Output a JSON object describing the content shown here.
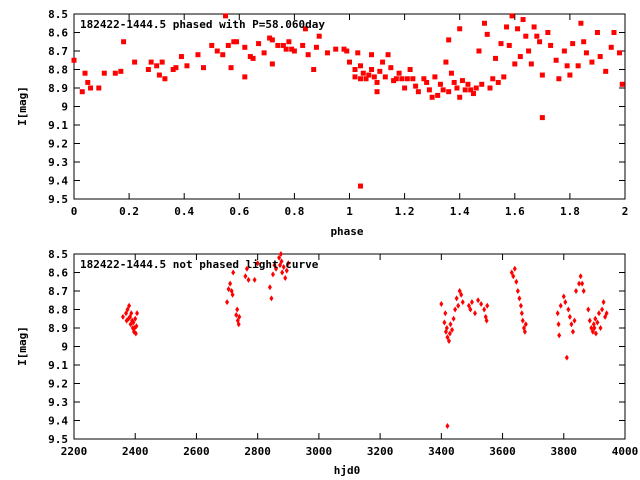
{
  "chart_data": [
    {
      "type": "scatter",
      "title": "182422-1444.5 phased with P=58.060day",
      "xlabel": "phase",
      "ylabel": "I[mag]",
      "xlim": [
        0,
        2
      ],
      "ylim": [
        9.5,
        8.5
      ],
      "y_inverted": true,
      "marker_color": "#ff0000",
      "marker": "filled-square",
      "xticks": [
        "0",
        "0.2",
        "0.4",
        "0.6",
        "0.8",
        "1",
        "1.2",
        "1.4",
        "1.6",
        "1.8",
        "2"
      ],
      "yticks": [
        "8.5",
        "8.6",
        "8.7",
        "8.8",
        "8.9",
        "9",
        "9.1",
        "9.2",
        "9.3",
        "9.4",
        "9.5"
      ],
      "points": [
        [
          0.0,
          8.75
        ],
        [
          0.03,
          8.92
        ],
        [
          0.04,
          8.82
        ],
        [
          0.05,
          8.87
        ],
        [
          0.06,
          8.9
        ],
        [
          0.09,
          8.9
        ],
        [
          0.11,
          8.82
        ],
        [
          0.15,
          8.82
        ],
        [
          0.17,
          8.81
        ],
        [
          0.18,
          8.65
        ],
        [
          0.22,
          8.76
        ],
        [
          0.27,
          8.8
        ],
        [
          0.28,
          8.76
        ],
        [
          0.3,
          8.78
        ],
        [
          0.31,
          8.83
        ],
        [
          0.32,
          8.76
        ],
        [
          0.33,
          8.85
        ],
        [
          0.36,
          8.8
        ],
        [
          0.37,
          8.79
        ],
        [
          0.39,
          8.73
        ],
        [
          0.41,
          8.78
        ],
        [
          0.45,
          8.72
        ],
        [
          0.47,
          8.79
        ],
        [
          0.5,
          8.67
        ],
        [
          0.52,
          8.7
        ],
        [
          0.54,
          8.72
        ],
        [
          0.55,
          8.51
        ],
        [
          0.56,
          8.67
        ],
        [
          0.57,
          8.79
        ],
        [
          0.58,
          8.65
        ],
        [
          0.59,
          8.65
        ],
        [
          0.62,
          8.68
        ],
        [
          0.62,
          8.84
        ],
        [
          0.64,
          8.73
        ],
        [
          0.65,
          8.74
        ],
        [
          0.67,
          8.66
        ],
        [
          0.69,
          8.71
        ],
        [
          0.71,
          8.63
        ],
        [
          0.72,
          8.64
        ],
        [
          0.72,
          8.77
        ],
        [
          0.74,
          8.67
        ],
        [
          0.76,
          8.67
        ],
        [
          0.77,
          8.69
        ],
        [
          0.78,
          8.65
        ],
        [
          0.79,
          8.69
        ],
        [
          0.8,
          8.7
        ],
        [
          0.83,
          8.67
        ],
        [
          0.84,
          8.58
        ],
        [
          0.85,
          8.72
        ],
        [
          0.87,
          8.8
        ],
        [
          0.88,
          8.68
        ],
        [
          0.89,
          8.62
        ],
        [
          0.92,
          8.71
        ],
        [
          0.95,
          8.69
        ],
        [
          0.98,
          8.69
        ],
        [
          0.99,
          8.7
        ],
        [
          1.0,
          8.76
        ],
        [
          1.02,
          8.8
        ],
        [
          1.02,
          8.84
        ],
        [
          1.03,
          8.71
        ],
        [
          1.04,
          8.78
        ],
        [
          1.04,
          8.85
        ],
        [
          1.05,
          8.82
        ],
        [
          1.06,
          8.85
        ],
        [
          1.07,
          8.83
        ],
        [
          1.08,
          8.72
        ],
        [
          1.08,
          8.8
        ],
        [
          1.09,
          8.84
        ],
        [
          1.1,
          8.87
        ],
        [
          1.1,
          8.92
        ],
        [
          1.11,
          8.81
        ],
        [
          1.12,
          8.76
        ],
        [
          1.13,
          8.84
        ],
        [
          1.14,
          8.72
        ],
        [
          1.15,
          8.79
        ],
        [
          1.16,
          8.86
        ],
        [
          1.17,
          8.85
        ],
        [
          1.18,
          8.82
        ],
        [
          1.19,
          8.85
        ],
        [
          1.2,
          8.9
        ],
        [
          1.21,
          8.85
        ],
        [
          1.22,
          8.8
        ],
        [
          1.23,
          8.85
        ],
        [
          1.24,
          8.89
        ],
        [
          1.25,
          8.92
        ],
        [
          1.27,
          8.85
        ],
        [
          1.28,
          8.87
        ],
        [
          1.29,
          8.91
        ],
        [
          1.3,
          8.95
        ],
        [
          1.31,
          8.84
        ],
        [
          1.32,
          8.94
        ],
        [
          1.33,
          8.88
        ],
        [
          1.34,
          8.91
        ],
        [
          1.35,
          8.76
        ],
        [
          1.36,
          8.64
        ],
        [
          1.36,
          8.92
        ],
        [
          1.37,
          8.82
        ],
        [
          1.38,
          8.87
        ],
        [
          1.39,
          8.9
        ],
        [
          1.4,
          8.58
        ],
        [
          1.4,
          8.95
        ],
        [
          1.41,
          8.86
        ],
        [
          1.42,
          8.91
        ],
        [
          1.43,
          8.88
        ],
        [
          1.44,
          8.91
        ],
        [
          1.45,
          8.93
        ],
        [
          1.46,
          8.9
        ],
        [
          1.47,
          8.7
        ],
        [
          1.48,
          8.88
        ],
        [
          1.49,
          8.55
        ],
        [
          1.5,
          8.61
        ],
        [
          1.51,
          8.9
        ],
        [
          1.52,
          8.85
        ],
        [
          1.53,
          8.74
        ],
        [
          1.54,
          8.87
        ],
        [
          1.55,
          8.66
        ],
        [
          1.56,
          8.84
        ],
        [
          1.57,
          8.57
        ],
        [
          1.58,
          8.67
        ],
        [
          1.59,
          8.51
        ],
        [
          1.6,
          8.77
        ],
        [
          1.61,
          8.58
        ],
        [
          1.62,
          8.73
        ],
        [
          1.63,
          8.53
        ],
        [
          1.64,
          8.62
        ],
        [
          1.65,
          8.7
        ],
        [
          1.66,
          8.77
        ],
        [
          1.67,
          8.57
        ],
        [
          1.68,
          8.62
        ],
        [
          1.69,
          8.65
        ],
        [
          1.7,
          8.83
        ],
        [
          1.7,
          9.06
        ],
        [
          1.72,
          8.6
        ],
        [
          1.73,
          8.67
        ],
        [
          1.75,
          8.75
        ],
        [
          1.76,
          8.85
        ],
        [
          1.78,
          8.7
        ],
        [
          1.79,
          8.78
        ],
        [
          1.8,
          8.83
        ],
        [
          1.81,
          8.66
        ],
        [
          1.83,
          8.78
        ],
        [
          1.84,
          8.55
        ],
        [
          1.85,
          8.65
        ],
        [
          1.86,
          8.71
        ],
        [
          1.88,
          8.76
        ],
        [
          1.9,
          8.6
        ],
        [
          1.91,
          8.73
        ],
        [
          1.93,
          8.81
        ],
        [
          1.95,
          8.68
        ],
        [
          1.96,
          8.6
        ],
        [
          1.98,
          8.71
        ],
        [
          1.99,
          8.88
        ],
        [
          1.04,
          9.43
        ]
      ]
    },
    {
      "type": "scatter",
      "title": "182422-1444.5 not phased light curve",
      "xlabel": "hjd0",
      "ylabel": "I[mag]",
      "xlim": [
        2200,
        4000
      ],
      "ylim": [
        9.5,
        8.5
      ],
      "y_inverted": true,
      "marker_color": "#ff0000",
      "marker": "filled-diamond",
      "xticks": [
        "2200",
        "2400",
        "2600",
        "2800",
        "3000",
        "3200",
        "3400",
        "3600",
        "3800",
        "4000"
      ],
      "yticks": [
        "8.5",
        "8.6",
        "8.7",
        "8.8",
        "8.9",
        "9",
        "9.1",
        "9.2",
        "9.3",
        "9.4",
        "9.5"
      ],
      "points": [
        [
          2360,
          8.84
        ],
        [
          2370,
          8.82
        ],
        [
          2372,
          8.86
        ],
        [
          2375,
          8.8
        ],
        [
          2378,
          8.85
        ],
        [
          2380,
          8.78
        ],
        [
          2383,
          8.84
        ],
        [
          2385,
          8.88
        ],
        [
          2387,
          8.82
        ],
        [
          2390,
          8.86
        ],
        [
          2392,
          8.9
        ],
        [
          2394,
          8.87
        ],
        [
          2396,
          8.92
        ],
        [
          2398,
          8.9
        ],
        [
          2400,
          8.85
        ],
        [
          2402,
          8.93
        ],
        [
          2404,
          8.89
        ],
        [
          2406,
          8.82
        ],
        [
          2700,
          8.76
        ],
        [
          2705,
          8.69
        ],
        [
          2710,
          8.66
        ],
        [
          2715,
          8.7
        ],
        [
          2718,
          8.72
        ],
        [
          2720,
          8.6
        ],
        [
          2730,
          8.83
        ],
        [
          2733,
          8.8
        ],
        [
          2735,
          8.86
        ],
        [
          2738,
          8.88
        ],
        [
          2740,
          8.84
        ],
        [
          2760,
          8.62
        ],
        [
          2765,
          8.58
        ],
        [
          2770,
          8.64
        ],
        [
          2790,
          8.64
        ],
        [
          2800,
          8.55
        ],
        [
          2840,
          8.68
        ],
        [
          2845,
          8.74
        ],
        [
          2850,
          8.61
        ],
        [
          2855,
          8.56
        ],
        [
          2860,
          8.58
        ],
        [
          2870,
          8.52
        ],
        [
          2873,
          8.56
        ],
        [
          2876,
          8.5
        ],
        [
          2878,
          8.54
        ],
        [
          2880,
          8.6
        ],
        [
          2885,
          8.57
        ],
        [
          2890,
          8.63
        ],
        [
          2895,
          8.59
        ],
        [
          2900,
          8.55
        ],
        [
          3400,
          8.77
        ],
        [
          3410,
          8.87
        ],
        [
          3413,
          8.82
        ],
        [
          3415,
          8.92
        ],
        [
          3418,
          8.9
        ],
        [
          3420,
          8.95
        ],
        [
          3425,
          8.97
        ],
        [
          3428,
          8.93
        ],
        [
          3430,
          8.88
        ],
        [
          3435,
          8.91
        ],
        [
          3440,
          8.85
        ],
        [
          3445,
          8.8
        ],
        [
          3450,
          8.74
        ],
        [
          3455,
          8.78
        ],
        [
          3460,
          8.7
        ],
        [
          3465,
          8.72
        ],
        [
          3470,
          8.76
        ],
        [
          3490,
          8.78
        ],
        [
          3495,
          8.8
        ],
        [
          3500,
          8.76
        ],
        [
          3510,
          8.82
        ],
        [
          3520,
          8.75
        ],
        [
          3530,
          8.77
        ],
        [
          3540,
          8.8
        ],
        [
          3545,
          8.84
        ],
        [
          3548,
          8.86
        ],
        [
          3550,
          8.78
        ],
        [
          3630,
          8.6
        ],
        [
          3635,
          8.62
        ],
        [
          3640,
          8.58
        ],
        [
          3645,
          8.65
        ],
        [
          3650,
          8.7
        ],
        [
          3655,
          8.74
        ],
        [
          3660,
          8.78
        ],
        [
          3663,
          8.82
        ],
        [
          3666,
          8.86
        ],
        [
          3670,
          8.9
        ],
        [
          3673,
          8.92
        ],
        [
          3676,
          8.88
        ],
        [
          3780,
          8.82
        ],
        [
          3783,
          8.88
        ],
        [
          3785,
          8.94
        ],
        [
          3790,
          8.78
        ],
        [
          3800,
          8.73
        ],
        [
          3805,
          8.76
        ],
        [
          3810,
          9.06
        ],
        [
          3815,
          8.8
        ],
        [
          3820,
          8.84
        ],
        [
          3825,
          8.88
        ],
        [
          3830,
          8.92
        ],
        [
          3835,
          8.86
        ],
        [
          3840,
          8.7
        ],
        [
          3850,
          8.66
        ],
        [
          3855,
          8.62
        ],
        [
          3860,
          8.66
        ],
        [
          3865,
          8.7
        ],
        [
          3880,
          8.8
        ],
        [
          3885,
          8.86
        ],
        [
          3890,
          8.9
        ],
        [
          3895,
          8.92
        ],
        [
          3898,
          8.88
        ],
        [
          3900,
          8.9
        ],
        [
          3903,
          8.85
        ],
        [
          3905,
          8.93
        ],
        [
          3910,
          8.87
        ],
        [
          3915,
          8.82
        ],
        [
          3920,
          8.9
        ],
        [
          3925,
          8.8
        ],
        [
          3930,
          8.76
        ],
        [
          3935,
          8.84
        ],
        [
          3940,
          8.82
        ],
        [
          3420,
          9.43
        ]
      ]
    }
  ]
}
